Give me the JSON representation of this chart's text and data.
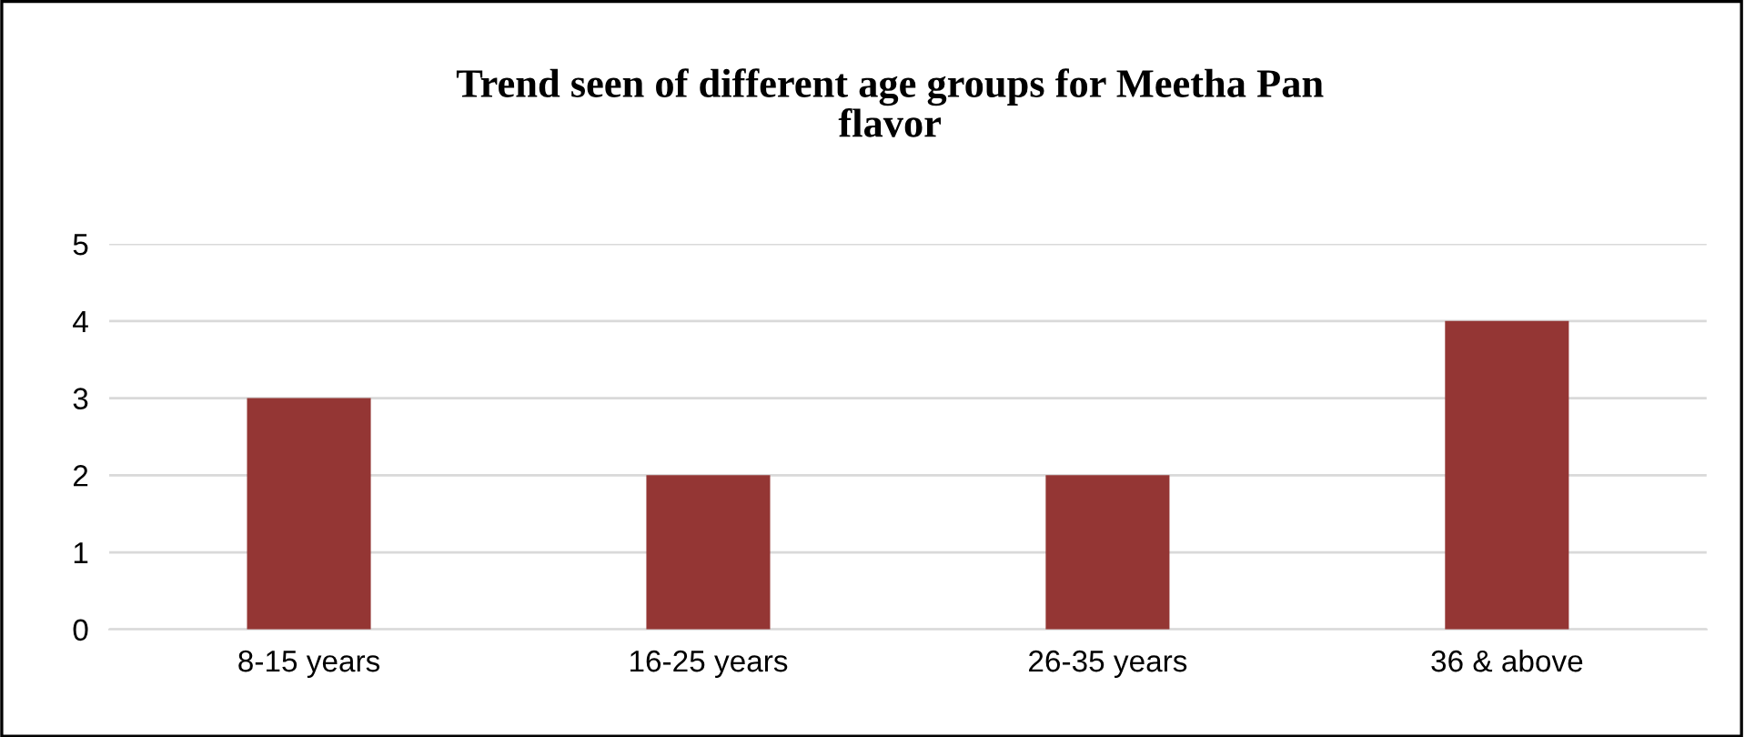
{
  "chart_data": {
    "type": "bar",
    "title": "Trend seen of different age groups for Meetha Pan flavor",
    "categories": [
      "8-15 years",
      "16-25 years",
      "26-35 years",
      "36 & above"
    ],
    "values": [
      3,
      2,
      2,
      4
    ],
    "color": "#943634",
    "ylim": [
      0,
      5
    ],
    "yticks": [
      0,
      1,
      2,
      3,
      4,
      5
    ],
    "grid": "y",
    "legend": false
  }
}
